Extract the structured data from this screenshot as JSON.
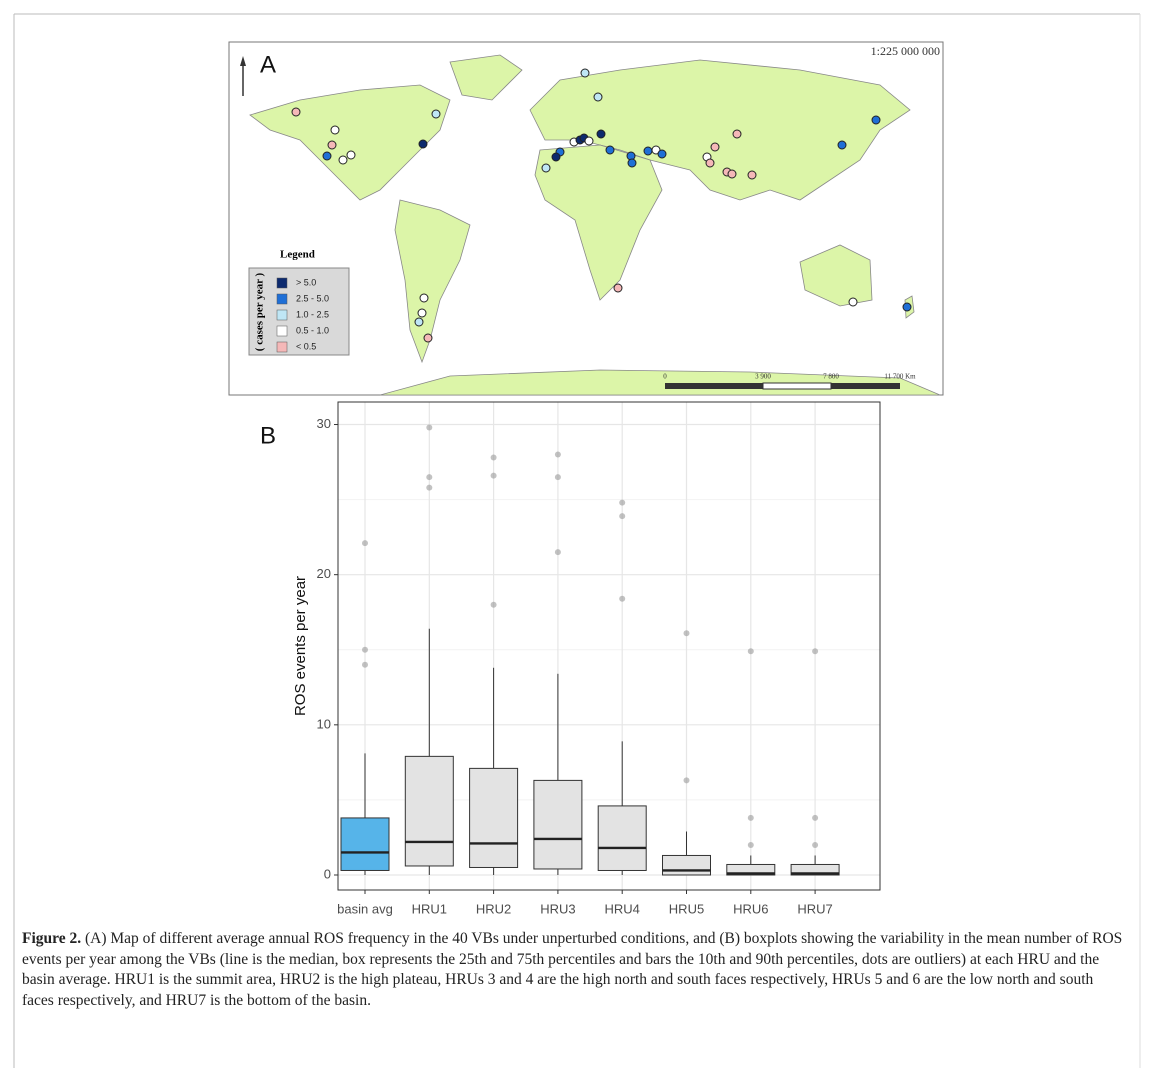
{
  "figure": {
    "panel_a": {
      "label": "A",
      "scale": "1:225 000 000",
      "legend": {
        "title": "Legend",
        "unit": "( cases per year )",
        "items": [
          {
            "label": "> 5.0",
            "color": "#0d2a6e"
          },
          {
            "label": "2.5 - 5.0",
            "color": "#1f6fd6"
          },
          {
            "label": "1.0 - 2.5",
            "color": "#bfe6f5"
          },
          {
            "label": "0.5 - 1.0",
            "color": "#ffffff"
          },
          {
            "label": "< 0.5",
            "color": "#f5b8b8"
          }
        ]
      },
      "scale_bar": [
        "0",
        "3 900",
        "7 800",
        "11 700 Km"
      ]
    },
    "caption": {
      "label": "Figure 2.",
      "text": "(A) Map of different average annual ROS frequency in the 40 VBs under unperturbed conditions, and (B) boxplots showing the variability in the mean number of ROS events per year among the VBs (line is the median, box represents the 25th and 75th percentiles and bars the 10th and 90th percentiles, dots are outliers) at each HRU and the basin average. HRU1 is the summit area, HRU2 is the high plateau, HRUs 3 and 4 are the high north and south faces respectively, HRUs 5 and 6 are the low north and south faces respectively, and HRU7 is the bottom of the basin."
    }
  },
  "chart_data": {
    "type": "box",
    "panel_label": "B",
    "y_label": "ROS events per year",
    "categories": [
      "basin avg",
      "HRU1",
      "HRU2",
      "HRU3",
      "HRU4",
      "HRU5",
      "HRU6",
      "HRU7"
    ],
    "whisker_low": [
      0,
      0,
      0,
      0,
      0,
      0,
      0,
      0
    ],
    "q1": [
      0.3,
      0.6,
      0.5,
      0.4,
      0.3,
      0,
      0,
      0
    ],
    "median": [
      1.5,
      2.2,
      2.1,
      2.4,
      1.8,
      0.3,
      0.1,
      0.1
    ],
    "q3": [
      3.8,
      7.9,
      7.1,
      6.3,
      4.6,
      1.3,
      0.7,
      0.7
    ],
    "whisker_high": [
      8.1,
      16.4,
      13.8,
      13.4,
      8.9,
      2.9,
      1.3,
      1.3
    ],
    "outliers": [
      [
        14.0,
        15.0,
        22.1
      ],
      [
        25.8,
        26.5,
        29.8
      ],
      [
        18.0,
        26.6,
        27.8
      ],
      [
        21.5,
        26.5,
        28.0
      ],
      [
        18.4,
        23.9,
        24.8
      ],
      [
        6.3,
        16.1
      ],
      [
        2.0,
        3.8,
        14.9
      ],
      [
        2.0,
        3.8,
        14.9
      ]
    ],
    "colors": [
      "#56b4e9",
      "#e3e3e3",
      "#e3e3e3",
      "#e3e3e3",
      "#e3e3e3",
      "#e3e3e3",
      "#e3e3e3",
      "#e3e3e3"
    ],
    "ylim": [
      -1.0,
      31.5
    ],
    "yticks": [
      0,
      10,
      20,
      30
    ],
    "minor_yticks": [
      5,
      15,
      25
    ],
    "grid": true
  }
}
